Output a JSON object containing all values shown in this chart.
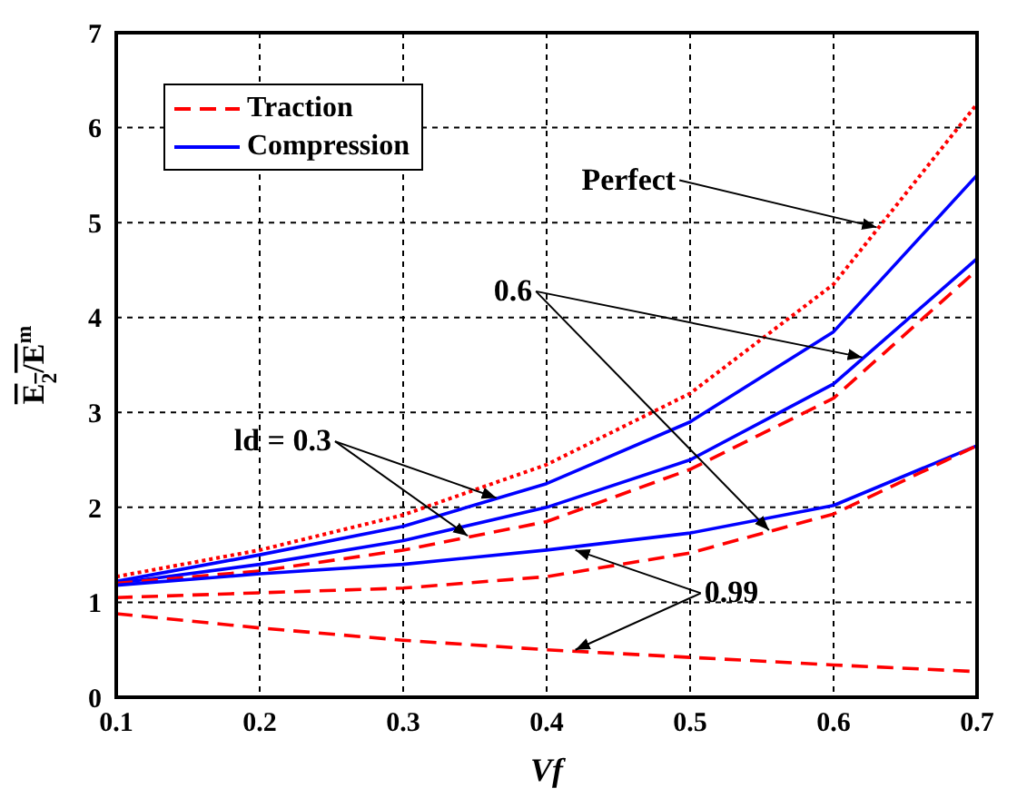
{
  "chart_data": {
    "type": "line",
    "xlabel": "Vf",
    "ylabel": "E$_{2}$/E$^{m}$",
    "x": [
      0.1,
      0.2,
      0.3,
      0.4,
      0.5,
      0.6,
      0.7
    ],
    "series": [
      {
        "color": "#ff0000",
        "line_style": "dotted",
        "values": [
          1.27,
          1.55,
          1.92,
          2.45,
          3.2,
          4.35,
          6.25
        ]
      },
      {
        "name": "Compression",
        "color": "#0000ff",
        "line_style": "solid",
        "values": [
          1.22,
          1.5,
          1.8,
          2.25,
          2.9,
          3.85,
          5.5
        ]
      },
      {
        "color": "#0000ff",
        "line_style": "solid",
        "values": [
          1.2,
          1.4,
          1.65,
          2.0,
          2.5,
          3.3,
          4.62
        ]
      },
      {
        "name": "Traction",
        "color": "#ff0000",
        "line_style": "dashed",
        "values": [
          1.2,
          1.33,
          1.55,
          1.85,
          2.4,
          3.15,
          4.5
        ]
      },
      {
        "color": "#0000ff",
        "line_style": "solid",
        "values": [
          1.18,
          1.3,
          1.4,
          1.55,
          1.73,
          2.02,
          2.65
        ]
      },
      {
        "color": "#ff0000",
        "line_style": "dashed",
        "values": [
          1.05,
          1.1,
          1.15,
          1.27,
          1.52,
          1.93,
          2.65
        ]
      },
      {
        "color": "#ff0000",
        "line_style": "dashed",
        "values": [
          0.88,
          0.73,
          0.6,
          0.5,
          0.42,
          0.34,
          0.27
        ]
      }
    ],
    "xlim": [
      0.1,
      0.7
    ],
    "xticks": [
      0.1,
      0.2,
      0.3,
      0.4,
      0.5,
      0.6,
      0.7
    ],
    "ylim": [
      0,
      7
    ],
    "yticks": [
      0,
      1,
      2,
      3,
      4,
      5,
      6,
      7
    ],
    "grid": true,
    "legend": "top left",
    "marker": "none",
    "annotations": [
      {
        "text": "Perfect",
        "x": 0.63,
        "y": 4.95
      },
      {
        "text": "ld = 0.3",
        "x": 0.365,
        "y": 2.1
      },
      {
        "text": "0.6",
        "x": 0.62,
        "y": 3.58
      },
      {
        "text": "0.99",
        "x": 0.42,
        "y": 1.55
      }
    ]
  }
}
